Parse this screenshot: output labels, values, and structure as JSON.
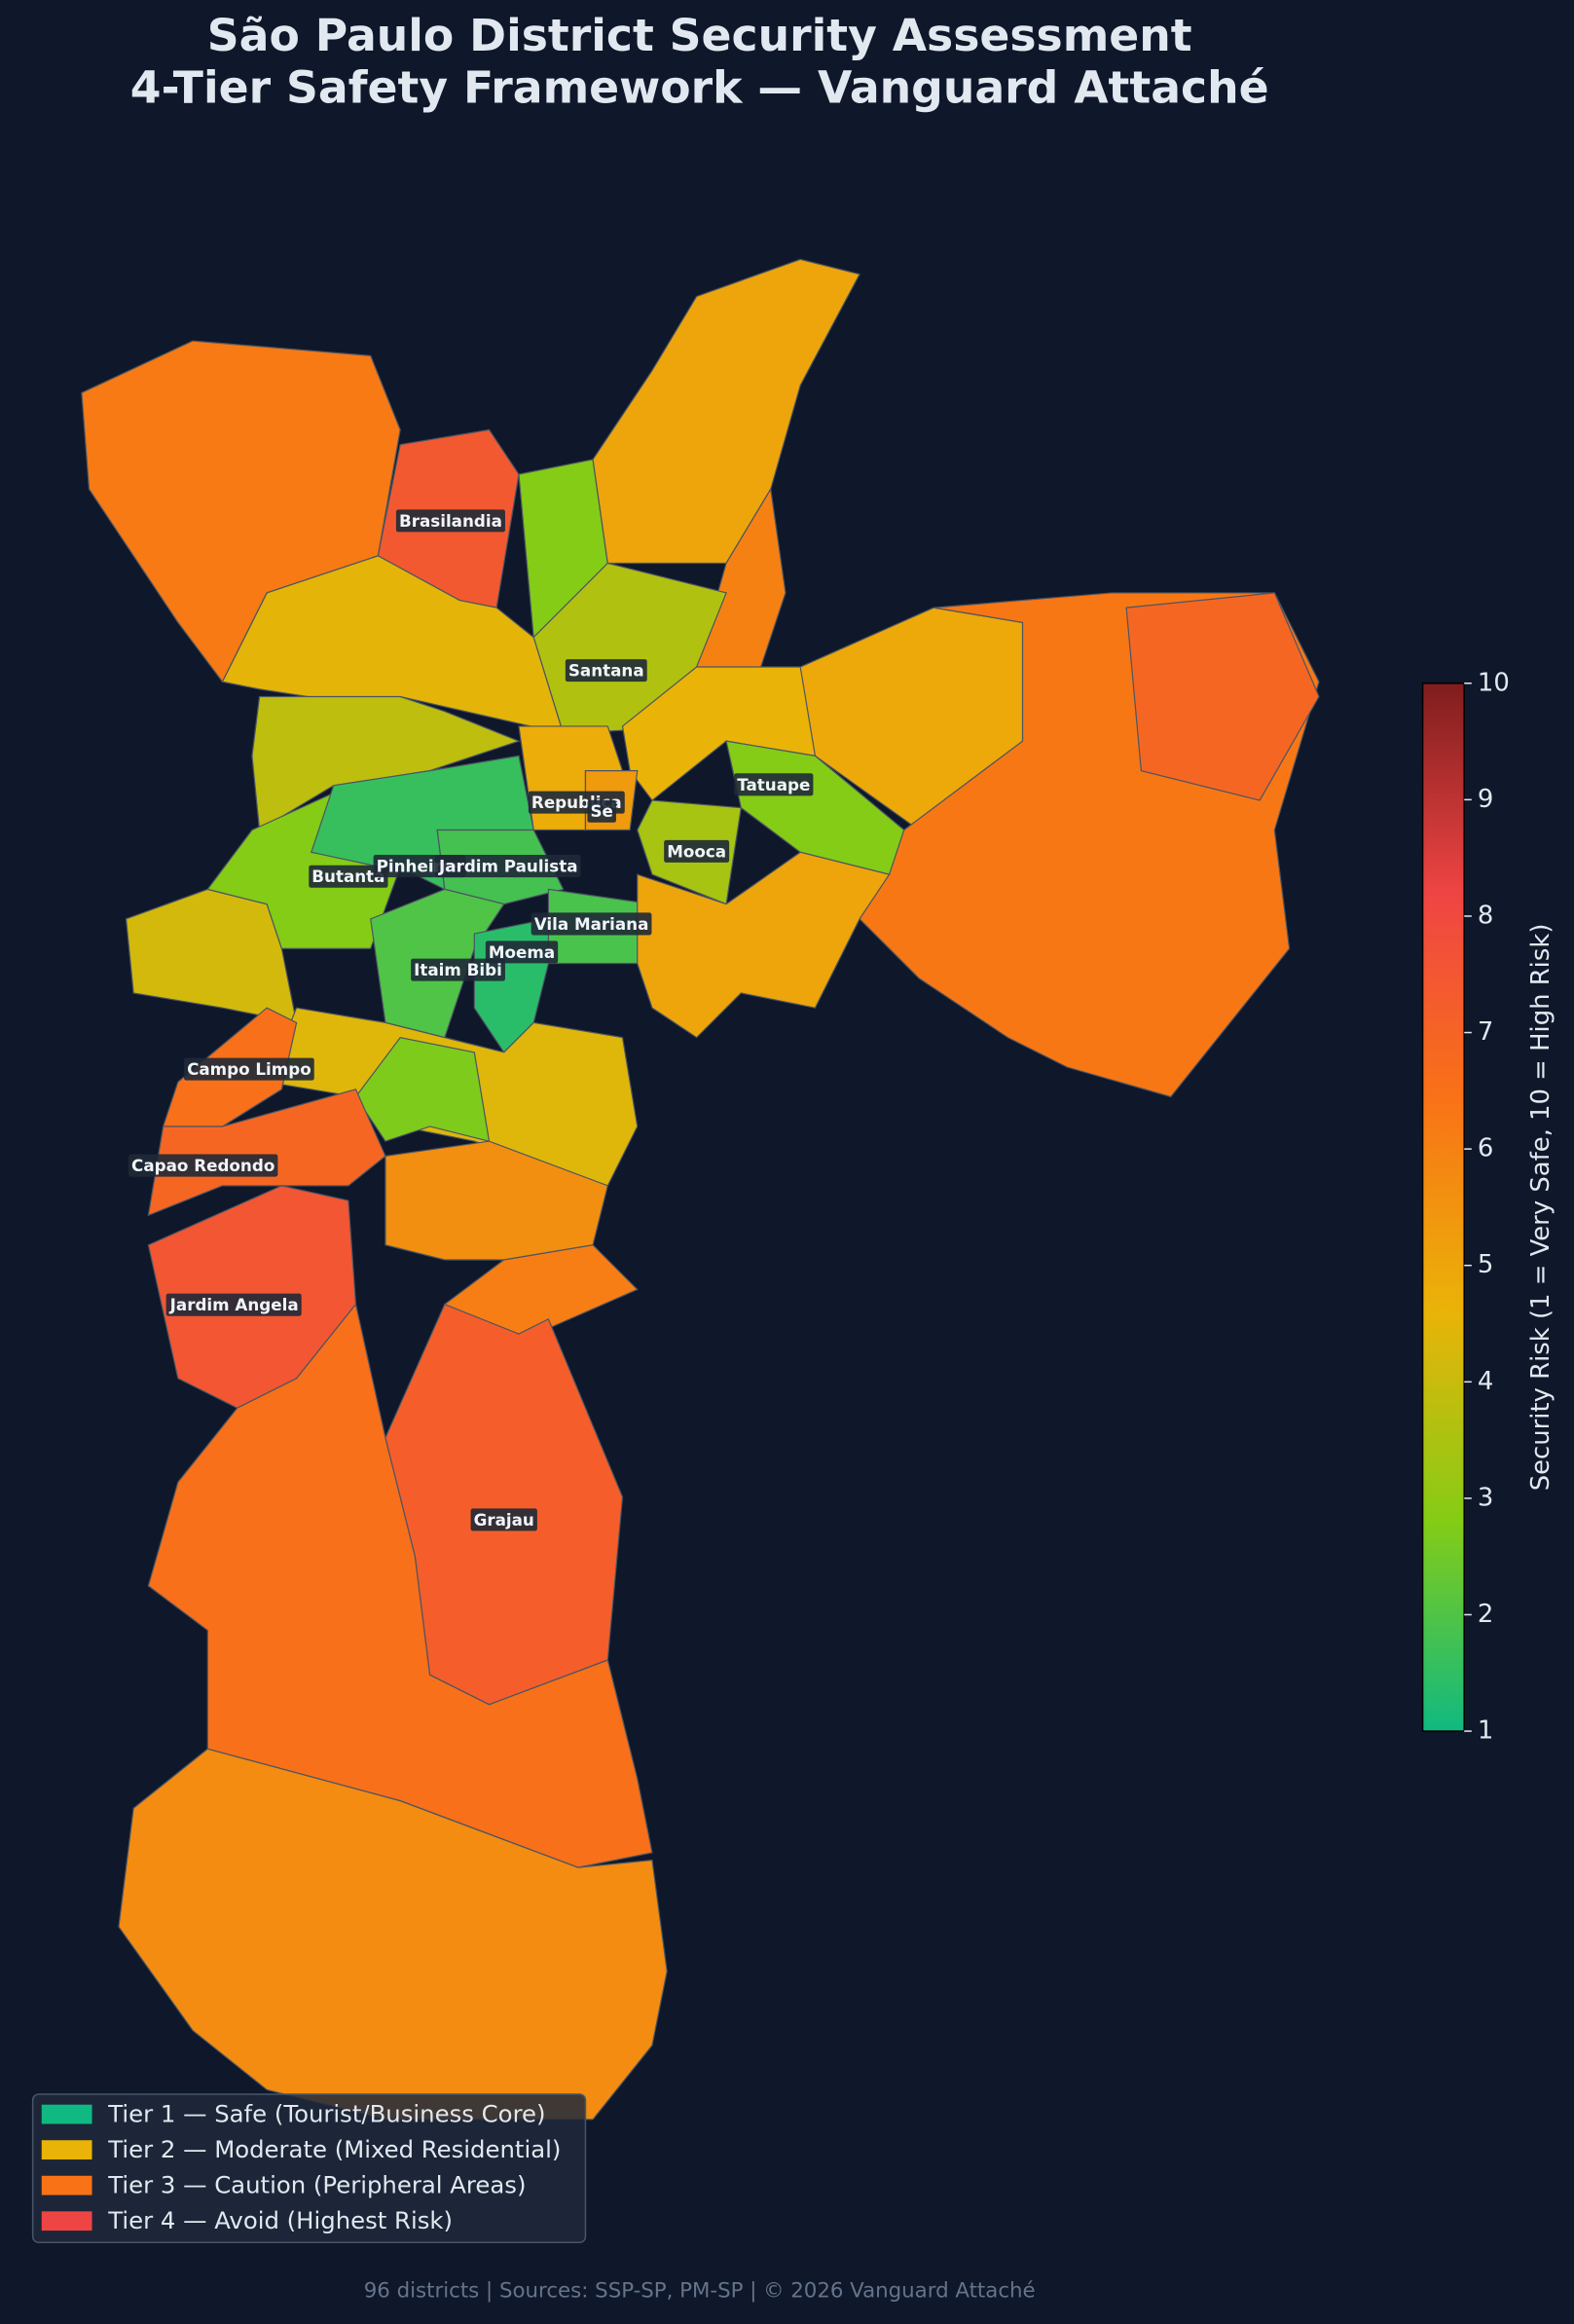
{
  "chart_data": {
    "type": "choropleth",
    "title": "São Paulo District Security Assessment",
    "subtitle": "4-Tier Safety Framework — Vanguard Attaché",
    "districts": [
      {
        "name": null,
        "value": 6.2
      },
      {
        "name": "Brasilandia",
        "value": 7.4
      },
      {
        "name": null,
        "value": 2.8
      },
      {
        "name": null,
        "value": 5
      },
      {
        "name": null,
        "value": 6
      },
      {
        "name": "Santana",
        "value": 3.6
      },
      {
        "name": null,
        "value": 4.5
      },
      {
        "name": null,
        "value": 3.8
      },
      {
        "name": null,
        "value": 4.2
      },
      {
        "name": "Butanta",
        "value": 2.8
      },
      {
        "name": "Pinheiros",
        "value": 1.6
      },
      {
        "name": "Jardim Paulista",
        "value": 1.8
      },
      {
        "name": "Vila Mariana",
        "value": 1.9
      },
      {
        "name": "Itaim Bibi",
        "value": 2
      },
      {
        "name": "Moema",
        "value": 1.4
      },
      {
        "name": null,
        "value": 4.6
      },
      {
        "name": null,
        "value": 4.9
      },
      {
        "name": null,
        "value": 6.3
      },
      {
        "name": null,
        "value": 6.9
      },
      {
        "name": "Republica",
        "value": 4.8
      },
      {
        "name": "Se",
        "value": 5.3
      },
      {
        "name": "Mooca",
        "value": 3.4
      },
      {
        "name": "Tatuape",
        "value": 2.8
      },
      {
        "name": null,
        "value": 5
      },
      {
        "name": null,
        "value": 4.4
      },
      {
        "name": null,
        "value": 2.7
      },
      {
        "name": "Campo Limpo",
        "value": 6.5
      },
      {
        "name": "Capao Redondo",
        "value": 6.9
      },
      {
        "name": "Jardim Angela",
        "value": 7.5
      },
      {
        "name": null,
        "value": 5.6
      },
      {
        "name": null,
        "value": 6.1
      },
      {
        "name": null,
        "value": 6.5
      },
      {
        "name": null,
        "value": 5.7
      },
      {
        "name": "Grajau",
        "value": 7.2
      }
    ],
    "colorbar_label": "Security Risk (1 = Very Safe, 10 = High Risk)",
    "ylim": [
      1,
      10
    ],
    "yticks": [
      1,
      2,
      3,
      4,
      5,
      6,
      7,
      8,
      9,
      10
    ],
    "colorscale": [
      "#10b981",
      "#84cc16",
      "#eab308",
      "#f97316",
      "#ef4444",
      "#7f1d1d"
    ],
    "legend": [
      {
        "name": "Tier 1 — Safe (Tourist/Business Core)",
        "color": "#10b981"
      },
      {
        "name": "Tier 2 — Moderate (Mixed Residential)",
        "color": "#eab308"
      },
      {
        "name": "Tier 3 — Caution (Peripheral Areas)",
        "color": "#f97316"
      },
      {
        "name": "Tier 4 — Avoid (Highest Risk)",
        "color": "#ef4444"
      }
    ],
    "footer": "96 districts | Sources: SSP-SP, PM-SP | © 2026 Vanguard Attaché"
  }
}
